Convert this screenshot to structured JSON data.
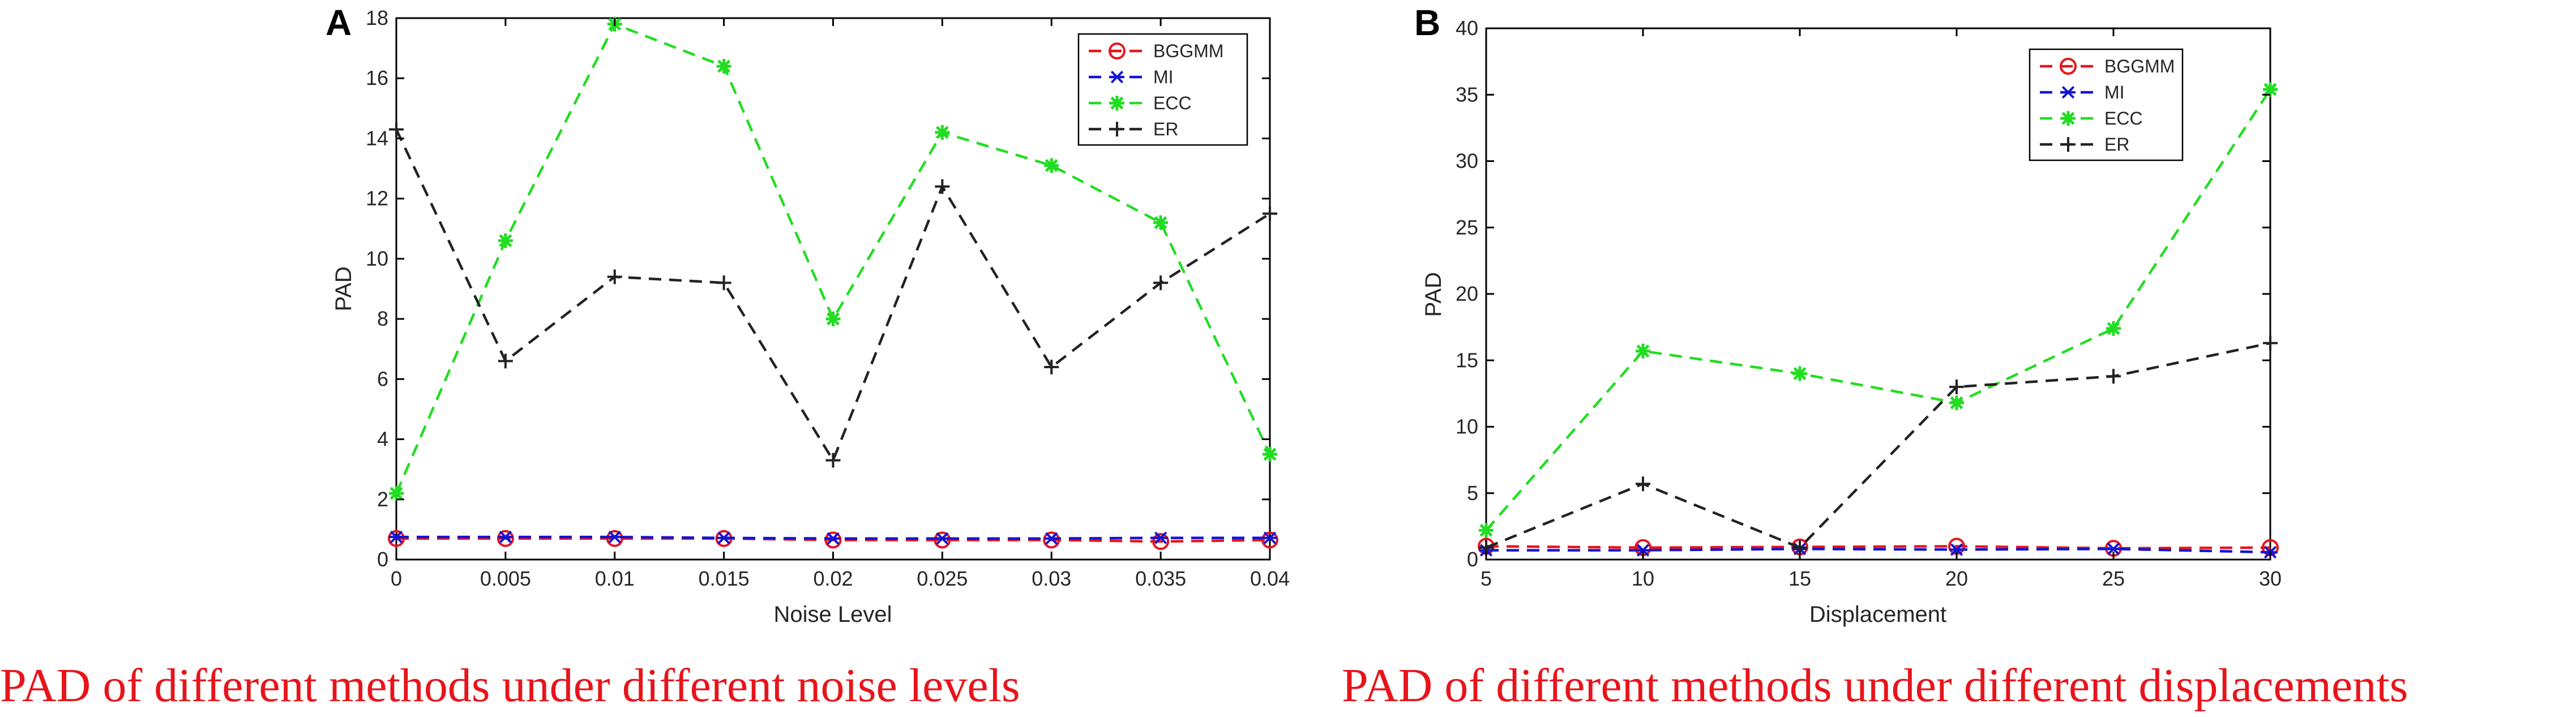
{
  "chart_data": [
    {
      "panel": "A",
      "type": "line",
      "caption": "PAD of different methods under different noise levels",
      "xlabel": "Noise Level",
      "ylabel": "PAD",
      "x": [
        0,
        0.005,
        0.01,
        0.015,
        0.02,
        0.025,
        0.03,
        0.035,
        0.04
      ],
      "x_tick_labels": [
        "0",
        "0.005",
        "0.01",
        "0.015",
        "0.02",
        "0.025",
        "0.03",
        "0.035",
        "0.04"
      ],
      "xlim": [
        0,
        0.04
      ],
      "ylim": [
        0,
        18
      ],
      "y_ticks": [
        0,
        2,
        4,
        6,
        8,
        10,
        12,
        14,
        16,
        18
      ],
      "legend_position": "top-right",
      "series": [
        {
          "name": "BGGMM",
          "color": "#e8141b",
          "marker": "circle",
          "values": [
            0.7,
            0.7,
            0.7,
            0.7,
            0.65,
            0.65,
            0.65,
            0.6,
            0.65
          ]
        },
        {
          "name": "MI",
          "color": "#1414d2",
          "marker": "star",
          "values": [
            0.75,
            0.75,
            0.75,
            0.72,
            0.7,
            0.7,
            0.7,
            0.72,
            0.72
          ]
        },
        {
          "name": "ECC",
          "color": "#22dd22",
          "marker": "asterisk",
          "values": [
            2.2,
            10.6,
            17.8,
            16.4,
            8.0,
            14.2,
            13.1,
            11.2,
            3.5
          ]
        },
        {
          "name": "ER",
          "color": "#222222",
          "marker": "plus",
          "values": [
            14.3,
            6.6,
            9.4,
            9.2,
            3.3,
            12.4,
            6.4,
            9.2,
            11.5
          ]
        }
      ]
    },
    {
      "panel": "B",
      "type": "line",
      "caption": "PAD of different methods under different displacements",
      "xlabel": "Displacement",
      "ylabel": "PAD",
      "x": [
        5,
        10,
        15,
        20,
        25,
        30
      ],
      "x_tick_labels": [
        "5",
        "10",
        "15",
        "20",
        "25",
        "30"
      ],
      "xlim": [
        5,
        30
      ],
      "ylim": [
        0,
        40
      ],
      "y_ticks": [
        0,
        5,
        10,
        15,
        20,
        25,
        30,
        35,
        40
      ],
      "legend_position": "top-right",
      "series": [
        {
          "name": "BGGMM",
          "color": "#e8141b",
          "marker": "circle",
          "values": [
            1.0,
            0.9,
            0.95,
            1.0,
            0.85,
            0.9
          ]
        },
        {
          "name": "MI",
          "color": "#1414d2",
          "marker": "star",
          "values": [
            0.7,
            0.7,
            0.8,
            0.75,
            0.8,
            0.55
          ]
        },
        {
          "name": "ECC",
          "color": "#22dd22",
          "marker": "asterisk",
          "values": [
            2.2,
            15.7,
            14.0,
            11.8,
            17.4,
            35.4
          ]
        },
        {
          "name": "ER",
          "color": "#222222",
          "marker": "plus",
          "values": [
            0.9,
            5.7,
            0.9,
            13.0,
            13.8,
            16.3
          ]
        }
      ]
    }
  ]
}
